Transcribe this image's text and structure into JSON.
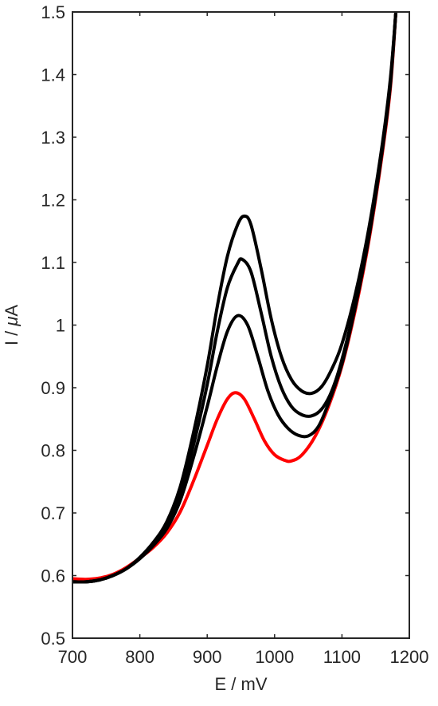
{
  "chart_data": {
    "type": "line",
    "xlabel": "E / mV",
    "ylabel": "I / μA",
    "xlim": [
      700,
      1200
    ],
    "ylim": [
      0.5,
      1.5
    ],
    "xticks": [
      700,
      800,
      900,
      1000,
      1100,
      1200
    ],
    "xtick_labels": [
      "700",
      "800",
      "900",
      "1000",
      "1100",
      "1200"
    ],
    "yticks": [
      0.5,
      0.6,
      0.7,
      0.8,
      0.9,
      1.0,
      1.1,
      1.2,
      1.3,
      1.4,
      1.5
    ],
    "ytick_labels": [
      "0.5",
      "0.6",
      "0.7",
      "0.8",
      "0.9",
      "1",
      "1.1",
      "1.2",
      "1.3",
      "1.4",
      "1.5"
    ],
    "grid": false,
    "legend": "none",
    "series": [
      {
        "color": "#ff0000",
        "points": [
          [
            700,
            0.595
          ],
          [
            720,
            0.594
          ],
          [
            740,
            0.596
          ],
          [
            760,
            0.602
          ],
          [
            780,
            0.613
          ],
          [
            800,
            0.628
          ],
          [
            820,
            0.645
          ],
          [
            840,
            0.668
          ],
          [
            860,
            0.702
          ],
          [
            880,
            0.752
          ],
          [
            900,
            0.808
          ],
          [
            915,
            0.85
          ],
          [
            930,
            0.882
          ],
          [
            942,
            0.892
          ],
          [
            955,
            0.882
          ],
          [
            970,
            0.85
          ],
          [
            985,
            0.815
          ],
          [
            1000,
            0.793
          ],
          [
            1015,
            0.784
          ],
          [
            1025,
            0.783
          ],
          [
            1040,
            0.792
          ],
          [
            1060,
            0.822
          ],
          [
            1080,
            0.87
          ],
          [
            1100,
            0.935
          ],
          [
            1120,
            1.025
          ],
          [
            1140,
            1.135
          ],
          [
            1160,
            1.275
          ],
          [
            1172,
            1.38
          ],
          [
            1180,
            1.5
          ]
        ]
      },
      {
        "color": "#000000",
        "points": [
          [
            700,
            0.59
          ],
          [
            720,
            0.59
          ],
          [
            740,
            0.593
          ],
          [
            760,
            0.6
          ],
          [
            780,
            0.611
          ],
          [
            800,
            0.627
          ],
          [
            820,
            0.648
          ],
          [
            840,
            0.675
          ],
          [
            860,
            0.72
          ],
          [
            880,
            0.79
          ],
          [
            900,
            0.87
          ],
          [
            915,
            0.935
          ],
          [
            930,
            0.99
          ],
          [
            945,
            1.015
          ],
          [
            960,
            1.0
          ],
          [
            975,
            0.95
          ],
          [
            990,
            0.895
          ],
          [
            1005,
            0.857
          ],
          [
            1020,
            0.835
          ],
          [
            1035,
            0.824
          ],
          [
            1050,
            0.823
          ],
          [
            1065,
            0.838
          ],
          [
            1080,
            0.875
          ],
          [
            1100,
            0.938
          ],
          [
            1120,
            1.03
          ],
          [
            1140,
            1.14
          ],
          [
            1160,
            1.28
          ],
          [
            1172,
            1.385
          ],
          [
            1180,
            1.5
          ]
        ]
      },
      {
        "color": "#000000",
        "points": [
          [
            700,
            0.59
          ],
          [
            720,
            0.59
          ],
          [
            740,
            0.593
          ],
          [
            760,
            0.6
          ],
          [
            780,
            0.611
          ],
          [
            800,
            0.628
          ],
          [
            820,
            0.65
          ],
          [
            840,
            0.68
          ],
          [
            860,
            0.73
          ],
          [
            880,
            0.81
          ],
          [
            900,
            0.905
          ],
          [
            915,
            0.99
          ],
          [
            930,
            1.06
          ],
          [
            945,
            1.098
          ],
          [
            952,
            1.105
          ],
          [
            965,
            1.085
          ],
          [
            980,
            1.02
          ],
          [
            995,
            0.95
          ],
          [
            1010,
            0.9
          ],
          [
            1025,
            0.87
          ],
          [
            1040,
            0.857
          ],
          [
            1055,
            0.855
          ],
          [
            1070,
            0.866
          ],
          [
            1085,
            0.895
          ],
          [
            1100,
            0.945
          ],
          [
            1120,
            1.035
          ],
          [
            1140,
            1.145
          ],
          [
            1160,
            1.285
          ],
          [
            1172,
            1.39
          ],
          [
            1180,
            1.5
          ]
        ]
      },
      {
        "color": "#000000",
        "points": [
          [
            700,
            0.59
          ],
          [
            720,
            0.59
          ],
          [
            740,
            0.593
          ],
          [
            760,
            0.6
          ],
          [
            780,
            0.611
          ],
          [
            800,
            0.629
          ],
          [
            820,
            0.653
          ],
          [
            840,
            0.686
          ],
          [
            860,
            0.742
          ],
          [
            880,
            0.83
          ],
          [
            900,
            0.935
          ],
          [
            915,
            1.03
          ],
          [
            930,
            1.11
          ],
          [
            945,
            1.16
          ],
          [
            955,
            1.174
          ],
          [
            965,
            1.16
          ],
          [
            980,
            1.09
          ],
          [
            995,
            1.01
          ],
          [
            1010,
            0.95
          ],
          [
            1025,
            0.913
          ],
          [
            1040,
            0.895
          ],
          [
            1055,
            0.891
          ],
          [
            1070,
            0.902
          ],
          [
            1085,
            0.93
          ],
          [
            1100,
            0.97
          ],
          [
            1120,
            1.05
          ],
          [
            1140,
            1.155
          ],
          [
            1160,
            1.29
          ],
          [
            1172,
            1.395
          ],
          [
            1180,
            1.5
          ]
        ]
      }
    ]
  }
}
